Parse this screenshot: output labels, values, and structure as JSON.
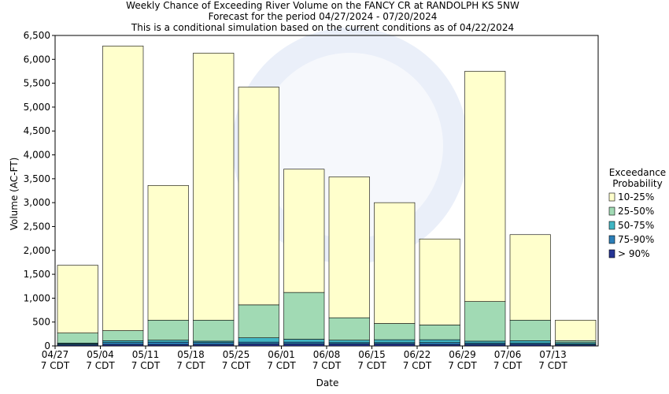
{
  "chart_data": {
    "type": "stacked_bar",
    "title": "Weekly Chance of Exceeding River Volume on the FANCY CR at RANDOLPH KS 5NW",
    "subtitle": "Forecast for the period 04/27/2024 - 07/20/2024",
    "note": "This is a conditional simulation based on the current conditions as of 04/22/2024",
    "x_label": "Date",
    "y_label": "Volume (AC-FT)",
    "legend_title": [
      "Exceedance",
      "Probability"
    ],
    "categories": [
      "04/27\n7 CDT",
      "05/04\n7 CDT",
      "05/11\n7 CDT",
      "05/18\n7 CDT",
      "05/25\n7 CDT",
      "06/01\n7 CDT",
      "06/08\n7 CDT",
      "06/15\n7 CDT",
      "06/22\n7 CDT",
      "06/29\n7 CDT",
      "07/06\n7 CDT",
      "07/13\n7 CDT"
    ],
    "series": [
      {
        "name": "> 90%",
        "color": "#253494",
        "values": [
          20,
          30,
          30,
          30,
          40,
          40,
          40,
          40,
          30,
          30,
          30,
          20
        ]
      },
      {
        "name": "75-90%",
        "color": "#2c7fb8",
        "values": [
          20,
          40,
          50,
          40,
          40,
          40,
          30,
          30,
          40,
          30,
          30,
          20
        ]
      },
      {
        "name": "50-75%",
        "color": "#41b6c4",
        "values": [
          20,
          40,
          40,
          30,
          90,
          60,
          50,
          60,
          60,
          40,
          50,
          30
        ]
      },
      {
        "name": "25-50%",
        "color": "#a1dab4",
        "values": [
          210,
          210,
          420,
          440,
          690,
          980,
          470,
          340,
          310,
          830,
          430,
          40
        ]
      },
      {
        "name": "10-25%",
        "color": "#ffffcc",
        "values": [
          1420,
          5960,
          2820,
          5590,
          4560,
          2580,
          2950,
          2530,
          1800,
          4820,
          1790,
          430
        ]
      }
    ],
    "ylim": [
      0,
      6500
    ],
    "yticks": [
      0,
      500,
      {
        "value": 1000,
        "label": "1,000"
      },
      {
        "value": 1500,
        "label": "1,500"
      },
      {
        "value": 2000,
        "label": "2,000"
      },
      {
        "value": 2500,
        "label": "2,500"
      },
      {
        "value": 3000,
        "label": "3,000"
      },
      {
        "value": 3500,
        "label": "3,500"
      },
      {
        "value": 4000,
        "label": "4,000"
      },
      {
        "value": 4500,
        "label": "4,500"
      },
      {
        "value": 5000,
        "label": "5,000"
      },
      {
        "value": 5500,
        "label": "5,500"
      },
      {
        "value": 6000,
        "label": "6,000"
      },
      {
        "value": 6500,
        "label": "6,500"
      }
    ],
    "grid": false
  }
}
